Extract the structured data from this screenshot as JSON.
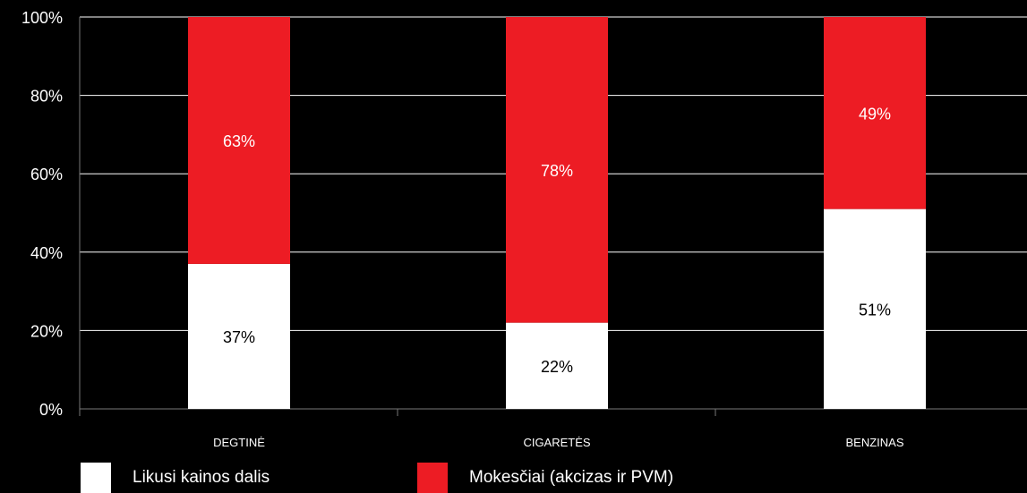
{
  "chart_data": {
    "type": "bar",
    "stacked": true,
    "categories": [
      "DEGTINĖ",
      "CIGARETĖS",
      "BENZINAS"
    ],
    "series": [
      {
        "name": "Likusi kainos dalis",
        "values": [
          37,
          22,
          51
        ],
        "color": "#ffffff",
        "label_color": "#000000",
        "labels": [
          "37%",
          "22%",
          "51%"
        ]
      },
      {
        "name": "Mokesčiai (akcizas ir PVM)",
        "values": [
          63,
          78,
          49
        ],
        "color": "#ed1c24",
        "label_color": "#ffffff",
        "labels": [
          "63%",
          "78%",
          "49%"
        ]
      }
    ],
    "ylim": [
      0,
      100
    ],
    "yticks": [
      0,
      20,
      40,
      60,
      80,
      100
    ],
    "ytick_labels": [
      "0%",
      "20%",
      "40%",
      "60%",
      "80%",
      "100%"
    ],
    "grid": true,
    "legend_position": "bottom-left",
    "background": "#000000",
    "grid_color": "#ffffff"
  }
}
